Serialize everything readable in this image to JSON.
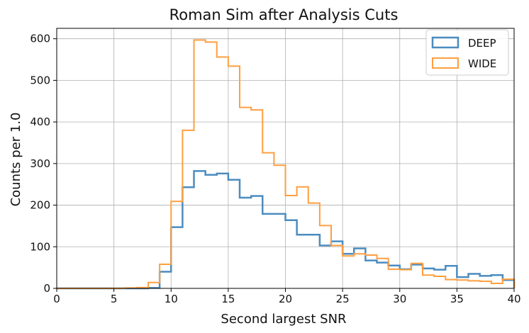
{
  "chart_data": {
    "type": "step",
    "title": "Roman Sim after Analysis Cuts",
    "xlabel": "Second largest SNR",
    "ylabel": "Counts per 1.0",
    "xlim": [
      0,
      40
    ],
    "ylim": [
      0,
      625
    ],
    "xticks": [
      0,
      5,
      10,
      15,
      20,
      25,
      30,
      35,
      40
    ],
    "yticks": [
      0,
      100,
      200,
      300,
      400,
      500,
      600
    ],
    "grid": true,
    "legend_position": "top-right",
    "bin_edges": [
      0,
      1,
      2,
      3,
      4,
      5,
      6,
      7,
      8,
      9,
      10,
      11,
      12,
      13,
      14,
      15,
      16,
      17,
      18,
      19,
      20,
      21,
      22,
      23,
      24,
      25,
      26,
      27,
      28,
      29,
      30,
      31,
      32,
      33,
      34,
      35,
      36,
      37,
      38,
      39,
      40
    ],
    "series": [
      {
        "name": "DEEP",
        "color": "#4c8cbf",
        "values": [
          0,
          0,
          0,
          0,
          0,
          0,
          0,
          0,
          1,
          40,
          147,
          243,
          282,
          273,
          276,
          261,
          218,
          222,
          179,
          179,
          164,
          129,
          129,
          103,
          113,
          83,
          96,
          67,
          62,
          55,
          46,
          57,
          48,
          45,
          54,
          27,
          35,
          30,
          32,
          20
        ]
      },
      {
        "name": "WIDE",
        "color": "#ff9f40",
        "values": [
          0,
          0,
          0,
          0,
          0,
          0,
          1,
          2,
          14,
          58,
          209,
          380,
          597,
          592,
          556,
          534,
          435,
          429,
          326,
          296,
          223,
          244,
          205,
          151,
          103,
          78,
          83,
          80,
          72,
          46,
          45,
          60,
          32,
          29,
          21,
          20,
          18,
          17,
          12,
          22
        ]
      }
    ]
  }
}
